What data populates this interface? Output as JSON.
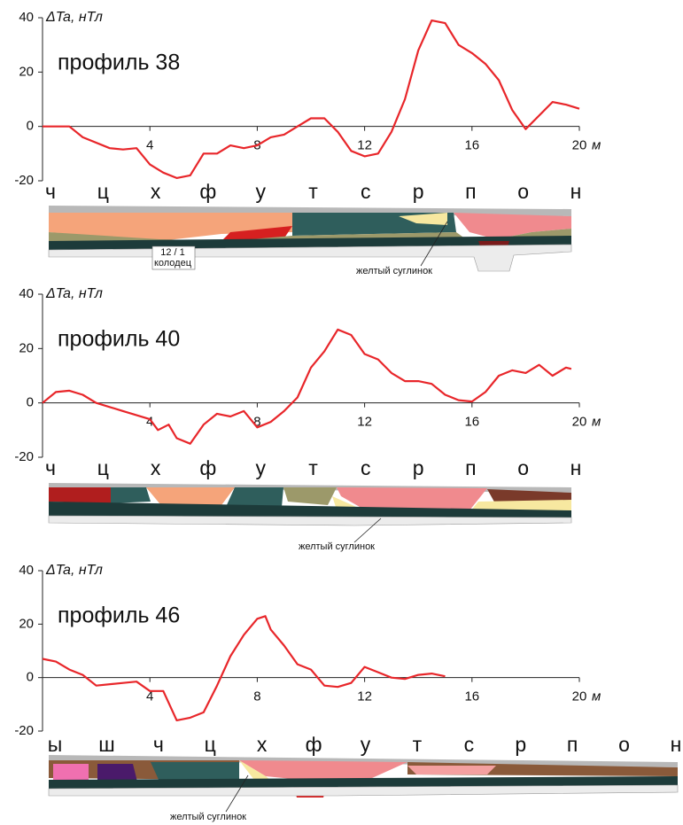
{
  "chart_data": [
    {
      "type": "line",
      "title": "профиль 38",
      "ylabel": "ΔTa, нТл",
      "xunit": "м",
      "xlim": [
        0,
        20
      ],
      "ylim": [
        -20,
        40
      ],
      "xticks": [
        4,
        8,
        12,
        16,
        20
      ],
      "yticks": [
        -20,
        0,
        20,
        40
      ],
      "x": [
        0,
        1,
        1.5,
        2.5,
        3,
        3.5,
        4,
        4.5,
        5,
        5.5,
        6,
        6.5,
        7,
        7.5,
        8,
        8.5,
        9,
        9.5,
        10,
        10.5,
        11,
        11.5,
        12,
        12.5,
        13,
        13.5,
        14,
        14.5,
        15,
        15.5,
        16,
        16.5,
        17,
        17.5,
        18,
        18.5,
        19,
        19.5,
        20
      ],
      "series": [
        {
          "color": "#e8262a",
          "values": [
            0,
            0,
            -4,
            -8,
            -8.5,
            -8,
            -14,
            -17,
            -19,
            -18,
            -10,
            -10,
            -7,
            -8,
            -7,
            -4,
            -3,
            0,
            3,
            3,
            -2,
            -9,
            -11,
            -10,
            -2,
            10,
            28,
            39,
            38,
            30,
            27,
            23,
            17,
            6,
            -1,
            4,
            9,
            8,
            6.5
          ]
        }
      ],
      "section_labels": [
        "ч",
        "ц",
        "х",
        "ф",
        "у",
        "т",
        "с",
        "р",
        "п",
        "о",
        "н"
      ],
      "annotations": [
        "12 / 1",
        "колодец",
        "желтый суглинок"
      ]
    },
    {
      "type": "line",
      "title": "профиль 40",
      "ylabel": "ΔTa, нТл",
      "xunit": "м",
      "xlim": [
        0,
        20
      ],
      "ylim": [
        -20,
        40
      ],
      "xticks": [
        4,
        8,
        12,
        16,
        20
      ],
      "yticks": [
        -20,
        0,
        20,
        40
      ],
      "x": [
        0,
        0.5,
        1,
        1.5,
        2,
        3,
        4,
        4.3,
        4.7,
        5,
        5.5,
        6,
        6.5,
        7,
        7.5,
        8,
        8.5,
        9,
        9.5,
        10,
        10.5,
        11,
        11.5,
        12,
        12.5,
        13,
        13.5,
        14,
        14.5,
        15,
        15.5,
        16,
        16.5,
        17,
        17.5,
        18,
        18.5,
        19,
        19.5,
        19.7
      ],
      "series": [
        {
          "color": "#e8262a",
          "values": [
            0,
            4,
            4.5,
            3,
            0,
            -3,
            -6,
            -10,
            -8,
            -13,
            -15,
            -8,
            -4,
            -5,
            -3,
            -9,
            -7,
            -3,
            2,
            13,
            19,
            27,
            25,
            18,
            16,
            11,
            8,
            8,
            7,
            3,
            1,
            0.5,
            4,
            10,
            12,
            11,
            14,
            10,
            13,
            12.5
          ]
        }
      ],
      "section_labels": [
        "ч",
        "ц",
        "х",
        "ф",
        "у",
        "т",
        "с",
        "р",
        "п",
        "о",
        "н"
      ],
      "annotations": [
        "желтый суглинок"
      ]
    },
    {
      "type": "line",
      "title": "профиль 46",
      "ylabel": "ΔTa, нТл",
      "xunit": "м",
      "xlim": [
        0,
        20
      ],
      "ylim": [
        -20,
        40
      ],
      "xticks": [
        4,
        8,
        12,
        16,
        20
      ],
      "yticks": [
        -20,
        0,
        20,
        40
      ],
      "x": [
        0,
        0.5,
        1,
        1.5,
        2,
        3,
        3.5,
        4,
        4.5,
        5,
        5.5,
        6,
        6.5,
        7,
        7.5,
        8,
        8.3,
        8.5,
        9,
        9.5,
        10,
        10.5,
        11,
        11.5,
        12,
        12.5,
        13,
        13.5,
        14,
        14.5,
        15
      ],
      "series": [
        {
          "color": "#e8262a",
          "values": [
            7,
            6,
            3,
            1,
            -3,
            -2,
            -1.5,
            -5,
            -5,
            -16,
            -15,
            -13,
            -3,
            8,
            16,
            22,
            23,
            18,
            12,
            5,
            3,
            -3,
            -3.5,
            -2,
            4,
            2,
            0,
            -0.5,
            1,
            1.5,
            0.5
          ]
        }
      ],
      "section_labels": [
        "ы",
        "ш",
        "ч",
        "ц",
        "х",
        "ф",
        "у",
        "т",
        "с",
        "р",
        "п",
        "о",
        "н"
      ],
      "annotations": [
        "желтый суглинок"
      ]
    }
  ]
}
